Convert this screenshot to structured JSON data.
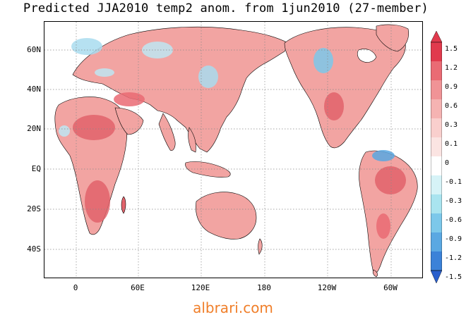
{
  "title": "Predicted JJA2010 temp2 anom. from 1jun2010 (27-member)",
  "watermark": "albrari.com",
  "axes": {
    "lat_labels": [
      "60N",
      "40N",
      "20N",
      "EQ",
      "20S",
      "40S"
    ],
    "lon_labels": [
      "0",
      "60E",
      "120E",
      "180",
      "120W",
      "60W"
    ]
  },
  "colorbar": {
    "labels": [
      "1.5",
      "1.2",
      "0.9",
      "0.6",
      "0.3",
      "0.1",
      "0",
      "-0.1",
      "-0.3",
      "-0.6",
      "-0.9",
      "-1.2",
      "-1.5"
    ],
    "colors": [
      "#e13a4d",
      "#ea6b74",
      "#f09396",
      "#f5b3b2",
      "#f9cfcd",
      "#fbe4e2",
      "#ffffff",
      "#d6f3f7",
      "#a9e4ef",
      "#7cc8ea",
      "#5aa8e2",
      "#3b82d8",
      "#2a5fcc"
    ]
  },
  "colors": {
    "land_warm": "#f2a4a2",
    "land_hot": "#e2636b",
    "land_cool": "#a9dcef",
    "grid": "#888888"
  }
}
